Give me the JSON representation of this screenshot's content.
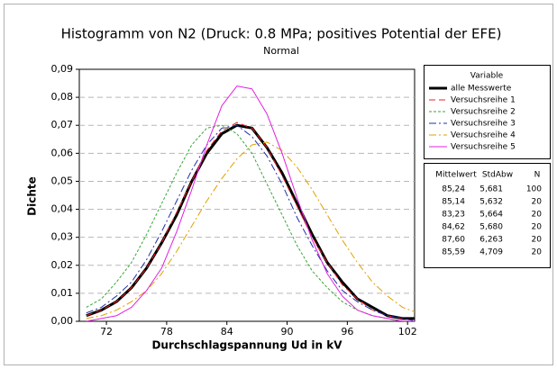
{
  "chart_data": {
    "type": "line",
    "title": "Histogramm von N2 (Druck: 0.8 MPa; positives Potential der EFE)",
    "subtitle": "Normal",
    "xlabel": "Durchschlagspannung Ud in kV",
    "ylabel": "Dichte",
    "x": [
      70,
      71.5,
      73,
      74.5,
      76,
      77.5,
      79,
      80.5,
      82,
      83.5,
      85,
      86.5,
      88,
      89.5,
      91,
      92.5,
      94,
      95.5,
      97,
      98.5,
      100,
      101.5,
      103
    ],
    "series": [
      {
        "name": "alle Messwerte",
        "color": "#000000",
        "dash": "none",
        "width": 3,
        "values": [
          0.002,
          0.004,
          0.007,
          0.012,
          0.019,
          0.028,
          0.038,
          0.05,
          0.06,
          0.067,
          0.07,
          0.069,
          0.062,
          0.053,
          0.042,
          0.031,
          0.021,
          0.014,
          0.008,
          0.005,
          0.002,
          0.001,
          0.001
        ]
      },
      {
        "name": "Versuchsreihe 1",
        "color": "#e8202a",
        "dash": "7 4",
        "width": 1,
        "values": [
          0.002,
          0.004,
          0.007,
          0.012,
          0.019,
          0.028,
          0.039,
          0.05,
          0.061,
          0.068,
          0.071,
          0.069,
          0.062,
          0.052,
          0.041,
          0.03,
          0.021,
          0.013,
          0.008,
          0.004,
          0.002,
          0.001,
          0.0
        ]
      },
      {
        "name": "Versuchsreihe 2",
        "color": "#3aa53a",
        "dash": "3 2",
        "width": 1,
        "values": [
          0.005,
          0.008,
          0.014,
          0.021,
          0.031,
          0.042,
          0.053,
          0.063,
          0.069,
          0.07,
          0.067,
          0.06,
          0.049,
          0.038,
          0.027,
          0.018,
          0.012,
          0.007,
          0.004,
          0.002,
          0.001,
          0.0,
          0.0
        ]
      },
      {
        "name": "Versuchsreihe 3",
        "color": "#1f2fa8",
        "dash": "8 3 2 3",
        "width": 1,
        "values": [
          0.003,
          0.005,
          0.009,
          0.014,
          0.022,
          0.032,
          0.043,
          0.054,
          0.063,
          0.069,
          0.07,
          0.066,
          0.059,
          0.049,
          0.037,
          0.027,
          0.018,
          0.011,
          0.007,
          0.004,
          0.002,
          0.001,
          0.0
        ]
      },
      {
        "name": "Versuchsreihe 4",
        "color": "#e0a000",
        "dash": "8 3 2 3",
        "width": 1,
        "values": [
          0.001,
          0.002,
          0.004,
          0.007,
          0.011,
          0.017,
          0.025,
          0.034,
          0.043,
          0.051,
          0.058,
          0.063,
          0.064,
          0.061,
          0.055,
          0.047,
          0.038,
          0.029,
          0.021,
          0.014,
          0.009,
          0.005,
          0.003
        ]
      },
      {
        "name": "Versuchsreihe 5",
        "color": "#e020e0",
        "dash": "none",
        "width": 1,
        "values": [
          0.0,
          0.001,
          0.002,
          0.005,
          0.011,
          0.019,
          0.032,
          0.047,
          0.063,
          0.077,
          0.084,
          0.083,
          0.074,
          0.06,
          0.044,
          0.029,
          0.017,
          0.009,
          0.004,
          0.002,
          0.001,
          0.0,
          0.0
        ]
      }
    ],
    "xlim": [
      69.3,
      102.7
    ],
    "xticks": [
      72,
      78,
      84,
      90,
      96,
      102
    ],
    "ylim": [
      0,
      0.09
    ],
    "yticks": [
      {
        "value": 0,
        "label": "0,00"
      },
      {
        "value": 0.01,
        "label": "0,01"
      },
      {
        "value": 0.02,
        "label": "0,02"
      },
      {
        "value": 0.03,
        "label": "0,03"
      },
      {
        "value": 0.04,
        "label": "0,04"
      },
      {
        "value": 0.05,
        "label": "0,05"
      },
      {
        "value": 0.06,
        "label": "0,06"
      },
      {
        "value": 0.07,
        "label": "0,07"
      },
      {
        "value": 0.08,
        "label": "0,08"
      },
      {
        "value": 0.09,
        "label": "0,09"
      }
    ],
    "grid": true,
    "legend_title": "Variable",
    "table": {
      "columns": [
        "Mittelwert",
        "StdAbw",
        "N"
      ],
      "rows": [
        [
          "85,24",
          "5,681",
          "100"
        ],
        [
          "85,14",
          "5,632",
          "20"
        ],
        [
          "83,23",
          "5,664",
          "20"
        ],
        [
          "84,62",
          "5,680",
          "20"
        ],
        [
          "87,60",
          "6,263",
          "20"
        ],
        [
          "85,59",
          "4,709",
          "20"
        ]
      ]
    }
  }
}
